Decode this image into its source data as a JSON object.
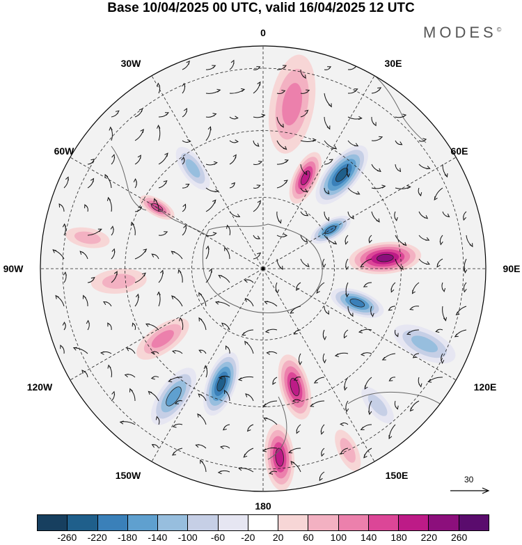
{
  "title": "Base 10/04/2025 00 UTC, valid 16/04/2025 12 UTC",
  "brand": {
    "name": "MODES",
    "mark": "©"
  },
  "longitude_labels": [
    "0",
    "30E",
    "60E",
    "90E",
    "120E",
    "150E",
    "180",
    "150W",
    "120W",
    "90W",
    "60W",
    "30W"
  ],
  "colorbar": {
    "ticks": [
      "-260",
      "-220",
      "-180",
      "-140",
      "-100",
      "-60",
      "-20",
      "20",
      "60",
      "100",
      "140",
      "180",
      "220",
      "260"
    ],
    "colors": [
      "#173f5f",
      "#1f5f8b",
      "#3a80b9",
      "#5fa0cf",
      "#97bede",
      "#c6cfe6",
      "#e6e6f2",
      "#ffffff",
      "#f7d6d6",
      "#f3b1c2",
      "#ec80ac",
      "#dc4697",
      "#bd1b87",
      "#8c0f7c",
      "#5a0c6d"
    ]
  },
  "vector_scale": {
    "label": "30"
  },
  "anomalies": [
    {
      "lon": 10,
      "r": 0.75,
      "value": 100,
      "size": 0.18
    },
    {
      "lon": 25,
      "r": 0.45,
      "value": 180,
      "size": 0.1
    },
    {
      "lon": 40,
      "r": 0.55,
      "value": -220,
      "size": 0.13
    },
    {
      "lon": 60,
      "r": 0.35,
      "value": -180,
      "size": 0.08
    },
    {
      "lon": 85,
      "r": 0.55,
      "value": 240,
      "size": 0.13
    },
    {
      "lon": 110,
      "r": 0.45,
      "value": -180,
      "size": 0.1
    },
    {
      "lon": 115,
      "r": 0.8,
      "value": -100,
      "size": 0.12
    },
    {
      "lon": 165,
      "r": 0.55,
      "value": 200,
      "size": 0.12
    },
    {
      "lon": 175,
      "r": 0.85,
      "value": 180,
      "size": 0.12
    },
    {
      "lon": 200,
      "r": 0.55,
      "value": -220,
      "size": 0.12
    },
    {
      "lon": 215,
      "r": 0.7,
      "value": -140,
      "size": 0.12
    },
    {
      "lon": 235,
      "r": 0.55,
      "value": 100,
      "size": 0.11
    },
    {
      "lon": 265,
      "r": 0.65,
      "value": 60,
      "size": 0.1
    },
    {
      "lon": 300,
      "r": 0.55,
      "value": 140,
      "size": 0.07
    },
    {
      "lon": 325,
      "r": 0.55,
      "value": -100,
      "size": 0.09
    },
    {
      "lon": 140,
      "r": 0.8,
      "value": -60,
      "size": 0.08
    },
    {
      "lon": 155,
      "r": 0.9,
      "value": 60,
      "size": 0.08
    },
    {
      "lon": 280,
      "r": 0.8,
      "value": 60,
      "size": 0.08
    }
  ]
}
